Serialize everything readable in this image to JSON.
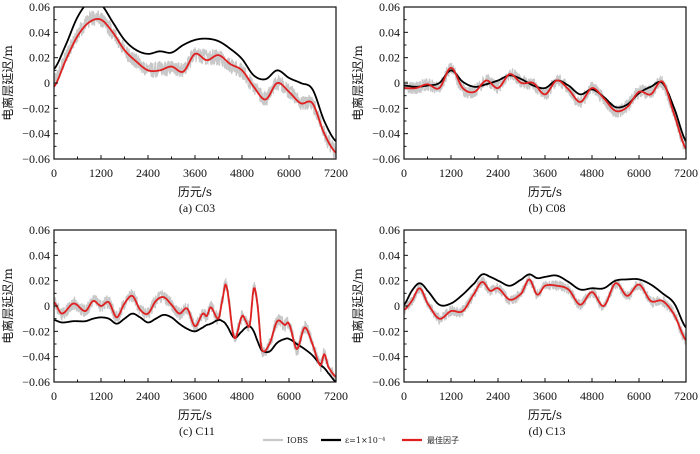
{
  "legend": {
    "items": [
      {
        "label": "IOBS",
        "color": "#c8c8c8",
        "key": "iobs"
      },
      {
        "label": "ε=1×10⁻⁴",
        "color": "#000000",
        "key": "eps"
      },
      {
        "label": "最佳因子",
        "color": "#e02020",
        "key": "best"
      }
    ]
  },
  "chart_data": [
    {
      "type": "line",
      "caption": "(a) C03",
      "xlabel": "历元/s",
      "ylabel": "电离层延迟/m",
      "xlim": [
        0,
        7200
      ],
      "ylim": [
        -0.06,
        0.06
      ],
      "xticks": [
        "0",
        "1200",
        "2400",
        "3600",
        "4800",
        "6000",
        "7200"
      ],
      "yticks": [
        "0.06",
        "0.04",
        "0.02",
        "0",
        "−0.02",
        "−0.04",
        "−0.06"
      ],
      "x": [
        0,
        300,
        600,
        900,
        1200,
        1500,
        1800,
        2100,
        2400,
        2700,
        3000,
        3300,
        3600,
        3900,
        4200,
        4500,
        4800,
        5100,
        5400,
        5700,
        6000,
        6300,
        6600,
        6900,
        7200
      ],
      "series": [
        {
          "name": "IOBS",
          "key": "iobs",
          "values": [
            0.0,
            0.02,
            0.038,
            0.05,
            0.05,
            0.04,
            0.026,
            0.017,
            0.011,
            0.011,
            0.012,
            0.011,
            0.022,
            0.02,
            0.02,
            0.014,
            0.009,
            -0.003,
            -0.012,
            0.0,
            -0.006,
            -0.015,
            -0.017,
            -0.04,
            -0.055
          ],
          "noise": 0.006
        },
        {
          "name": "ε=1×10⁻⁴",
          "key": "eps",
          "values": [
            0.011,
            0.03,
            0.052,
            0.064,
            0.062,
            0.048,
            0.034,
            0.026,
            0.023,
            0.025,
            0.024,
            0.03,
            0.034,
            0.035,
            0.033,
            0.027,
            0.019,
            0.006,
            0.003,
            0.01,
            0.004,
            0.0,
            -0.005,
            -0.03,
            -0.046
          ]
        },
        {
          "name": "最佳因子",
          "key": "best",
          "values": [
            -0.003,
            0.018,
            0.037,
            0.048,
            0.05,
            0.04,
            0.026,
            0.017,
            0.01,
            0.01,
            0.013,
            0.009,
            0.023,
            0.018,
            0.022,
            0.015,
            0.01,
            -0.003,
            -0.013,
            0.0,
            -0.007,
            -0.016,
            -0.016,
            -0.04,
            -0.055
          ]
        }
      ]
    },
    {
      "type": "line",
      "caption": "(b) C08",
      "xlabel": "历元/s",
      "ylabel": "电离层延迟/m",
      "xlim": [
        0,
        7200
      ],
      "ylim": [
        -0.06,
        0.06
      ],
      "xticks": [
        "0",
        "1200",
        "2400",
        "3600",
        "4800",
        "6000",
        "7200"
      ],
      "yticks": [
        "0.06",
        "0.04",
        "0.02",
        "0",
        "−0.02",
        "−0.04",
        "−0.06"
      ],
      "x": [
        0,
        300,
        600,
        900,
        1200,
        1500,
        1800,
        2100,
        2400,
        2700,
        3000,
        3300,
        3600,
        3900,
        4200,
        4500,
        4800,
        5100,
        5400,
        5700,
        6000,
        6300,
        6600,
        6900,
        7200
      ],
      "series": [
        {
          "name": "IOBS",
          "key": "iobs",
          "values": [
            -0.003,
            -0.004,
            -0.001,
            -0.003,
            0.011,
            -0.005,
            -0.006,
            0.002,
            -0.003,
            0.007,
            0.001,
            -0.001,
            -0.009,
            0.002,
            -0.005,
            -0.015,
            -0.004,
            -0.013,
            -0.022,
            -0.018,
            -0.007,
            -0.007,
            0.0,
            -0.025,
            -0.052
          ],
          "noise": 0.005
        },
        {
          "name": "ε=1×10⁻⁴",
          "key": "eps",
          "values": [
            -0.002,
            -0.003,
            -0.002,
            0.0,
            0.01,
            0.001,
            -0.003,
            -0.001,
            0.002,
            0.006,
            0.003,
            -0.002,
            -0.004,
            0.002,
            -0.002,
            -0.009,
            -0.005,
            -0.011,
            -0.019,
            -0.017,
            -0.008,
            -0.003,
            0.0,
            -0.02,
            -0.046
          ]
        },
        {
          "name": "最佳因子",
          "key": "best",
          "values": [
            -0.004,
            -0.004,
            -0.001,
            -0.004,
            0.012,
            -0.004,
            -0.007,
            0.002,
            -0.004,
            0.007,
            0.0,
            0.0,
            -0.009,
            0.002,
            -0.005,
            -0.015,
            -0.004,
            -0.012,
            -0.022,
            -0.019,
            -0.007,
            -0.009,
            0.001,
            -0.025,
            -0.052
          ]
        }
      ]
    },
    {
      "type": "line",
      "caption": "(c) C11",
      "xlabel": "历元/s",
      "ylabel": "电离层延迟/m",
      "xlim": [
        0,
        7200
      ],
      "ylim": [
        -0.06,
        0.06
      ],
      "xticks": [
        "0",
        "1200",
        "2400",
        "3600",
        "4800",
        "6000",
        "7200"
      ],
      "yticks": [
        "0.06",
        "0.04",
        "0.02",
        "0",
        "−0.02",
        "−0.04",
        "−0.06"
      ],
      "x": [
        0,
        200,
        500,
        800,
        1000,
        1200,
        1400,
        1600,
        1800,
        2000,
        2200,
        2400,
        2600,
        2800,
        3000,
        3200,
        3400,
        3600,
        3800,
        3900,
        4000,
        4200,
        4300,
        4400,
        4600,
        4800,
        4900,
        5000,
        5100,
        5200,
        5300,
        5500,
        5700,
        5900,
        6000,
        6200,
        6400,
        6600,
        6800,
        6900,
        7000,
        7200
      ],
      "series": [
        {
          "name": "IOBS",
          "key": "iobs",
          "values": [
            0.003,
            -0.006,
            0.002,
            -0.004,
            0.004,
            0.0,
            0.003,
            -0.009,
            0.002,
            0.008,
            -0.003,
            -0.006,
            0.004,
            0.007,
            0.001,
            -0.006,
            -0.002,
            -0.016,
            -0.006,
            -0.008,
            -0.001,
            -0.01,
            0.005,
            0.016,
            -0.025,
            -0.008,
            -0.012,
            -0.015,
            0.014,
            0.0,
            -0.034,
            -0.03,
            -0.012,
            -0.015,
            -0.014,
            -0.034,
            -0.017,
            -0.03,
            -0.047,
            -0.038,
            -0.048,
            -0.056
          ],
          "noise": 0.005
        },
        {
          "name": "ε=1×10⁻⁴",
          "key": "eps",
          "values": [
            -0.011,
            -0.013,
            -0.012,
            -0.012,
            -0.01,
            -0.009,
            -0.01,
            -0.014,
            -0.01,
            -0.006,
            -0.009,
            -0.013,
            -0.01,
            -0.007,
            -0.009,
            -0.014,
            -0.018,
            -0.02,
            -0.017,
            -0.015,
            -0.014,
            -0.011,
            -0.012,
            -0.015,
            -0.025,
            -0.02,
            -0.017,
            -0.016,
            -0.02,
            -0.028,
            -0.035,
            -0.036,
            -0.029,
            -0.026,
            -0.026,
            -0.03,
            -0.034,
            -0.039,
            -0.046,
            -0.049,
            -0.053,
            -0.06
          ]
        },
        {
          "name": "最佳因子",
          "key": "best",
          "values": [
            0.003,
            -0.006,
            0.002,
            -0.004,
            0.004,
            0.0,
            0.003,
            -0.009,
            0.002,
            0.008,
            -0.003,
            -0.006,
            0.004,
            0.007,
            0.001,
            -0.006,
            -0.002,
            -0.016,
            -0.006,
            -0.008,
            -0.001,
            -0.01,
            0.005,
            0.016,
            -0.025,
            -0.008,
            -0.012,
            -0.015,
            0.014,
            0.0,
            -0.034,
            -0.03,
            -0.012,
            -0.015,
            -0.014,
            -0.034,
            -0.017,
            -0.03,
            -0.047,
            -0.038,
            -0.048,
            -0.056
          ]
        }
      ]
    },
    {
      "type": "line",
      "caption": "(d) C13",
      "xlabel": "历元/s",
      "ylabel": "电离层延迟/m",
      "xlim": [
        0,
        7200
      ],
      "ylim": [
        -0.06,
        0.06
      ],
      "xticks": [
        "0",
        "1200",
        "2400",
        "3600",
        "4800",
        "6000",
        "7200"
      ],
      "yticks": [
        "0.06",
        "0.04",
        "0.02",
        "0",
        "−0.02",
        "−0.04",
        "−0.06"
      ],
      "x": [
        0,
        200,
        400,
        600,
        900,
        1200,
        1500,
        1800,
        2000,
        2200,
        2400,
        2700,
        3000,
        3200,
        3400,
        3600,
        3900,
        4200,
        4500,
        4800,
        5100,
        5400,
        5700,
        6000,
        6300,
        6600,
        6900,
        7200
      ],
      "series": [
        {
          "name": "IOBS",
          "key": "iobs",
          "values": [
            -0.003,
            0.004,
            0.014,
            0.002,
            -0.01,
            -0.004,
            -0.004,
            0.01,
            0.019,
            0.012,
            0.014,
            0.005,
            0.01,
            0.021,
            0.009,
            0.016,
            0.016,
            0.013,
            0.001,
            0.011,
            0.0,
            0.018,
            0.008,
            0.017,
            0.004,
            0.004,
            -0.007,
            -0.027
          ],
          "noise": 0.004
        },
        {
          "name": "ε=1×10⁻⁴",
          "key": "eps",
          "values": [
            0.001,
            0.012,
            0.018,
            0.012,
            0.001,
            0.002,
            0.009,
            0.018,
            0.025,
            0.023,
            0.02,
            0.016,
            0.021,
            0.025,
            0.022,
            0.023,
            0.024,
            0.019,
            0.013,
            0.014,
            0.014,
            0.02,
            0.021,
            0.021,
            0.017,
            0.01,
            0.002,
            -0.017
          ]
        },
        {
          "name": "最佳因子",
          "key": "best",
          "values": [
            -0.003,
            0.004,
            0.014,
            0.002,
            -0.01,
            -0.004,
            -0.004,
            0.01,
            0.019,
            0.012,
            0.014,
            0.005,
            0.01,
            0.021,
            0.009,
            0.016,
            0.016,
            0.013,
            0.001,
            0.011,
            0.0,
            0.018,
            0.008,
            0.017,
            0.004,
            0.004,
            -0.007,
            -0.027
          ]
        }
      ]
    }
  ]
}
